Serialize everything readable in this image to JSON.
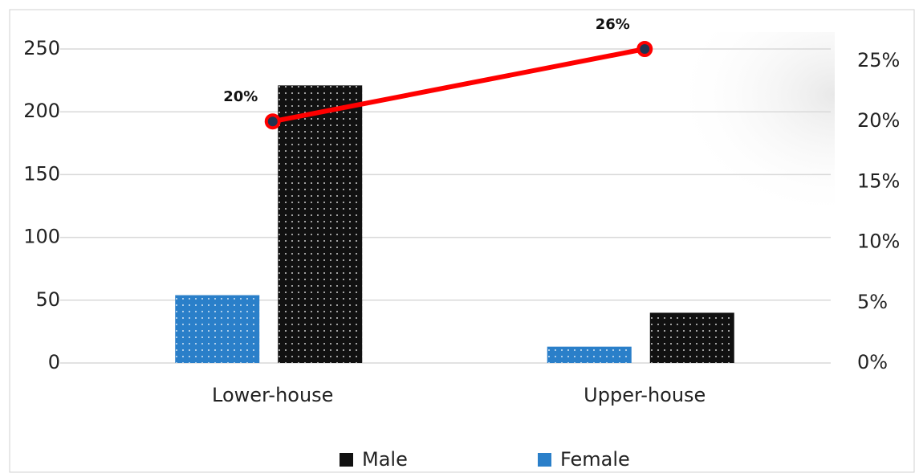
{
  "chart_data": {
    "type": "bar",
    "categories": [
      "Lower-house",
      "Upper-house"
    ],
    "series": [
      {
        "name": "Female",
        "color": "#2a7fc9",
        "values": [
          54,
          13
        ]
      },
      {
        "name": "Male",
        "color": "#111111",
        "values": [
          221,
          40
        ]
      },
      {
        "type": "line",
        "axis": "y2",
        "color": "#ff0000",
        "values": [
          20,
          26
        ],
        "value_labels": [
          "20%",
          "26%"
        ]
      }
    ],
    "ylim": [
      0,
      250
    ],
    "yticks": [
      0,
      50,
      100,
      150,
      200,
      250
    ],
    "y2lim": [
      0,
      26
    ],
    "y2ticks": [
      {
        "value": 0,
        "label": "0%"
      },
      {
        "value": 5,
        "label": "5%"
      },
      {
        "value": 10,
        "label": "10%"
      },
      {
        "value": 15,
        "label": "15%"
      },
      {
        "value": 20,
        "label": "20%"
      },
      {
        "value": 25,
        "label": "25%"
      }
    ],
    "grid": true,
    "legend": "bottom"
  }
}
